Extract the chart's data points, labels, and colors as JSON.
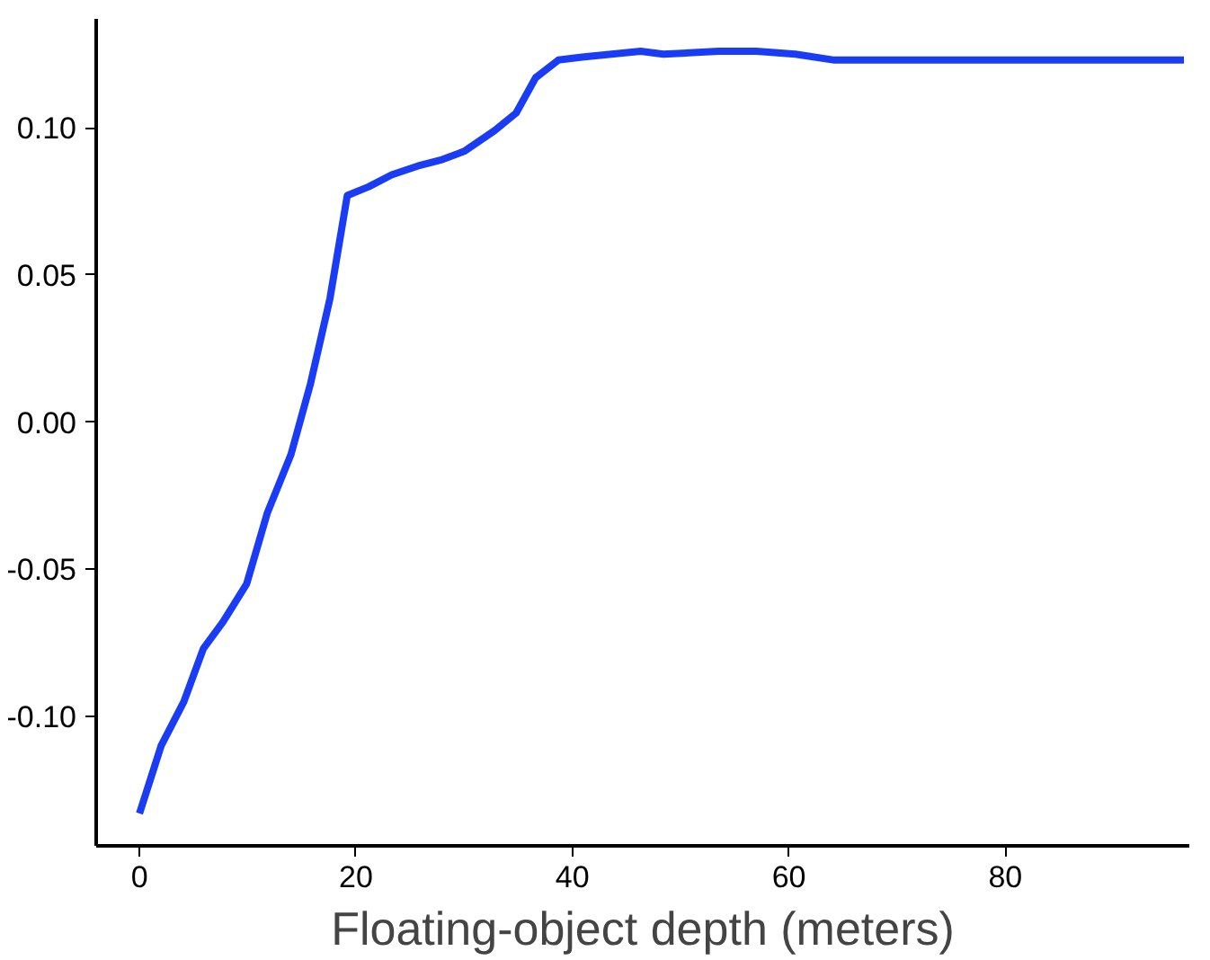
{
  "chart_data": {
    "type": "line",
    "xlabel": "Floating-object depth (meters)",
    "x": [
      0,
      2,
      4.1,
      5.9,
      7.7,
      9.9,
      11.8,
      14,
      15.8,
      17.6,
      19.2,
      21.2,
      23.3,
      25.7,
      27.8,
      30,
      32.8,
      34.8,
      36.6,
      38.7,
      40.9,
      46.3,
      48.4,
      53.5,
      57,
      60.6,
      64.2,
      96.5
    ],
    "series": [
      {
        "color": "#1a3cf5",
        "values": [
          -0.133,
          -0.11,
          -0.095,
          -0.077,
          -0.068,
          -0.055,
          -0.031,
          -0.011,
          0.013,
          0.042,
          0.077,
          0.08,
          0.084,
          0.087,
          0.089,
          0.092,
          0.099,
          0.105,
          0.117,
          0.123,
          0.124,
          0.126,
          0.125,
          0.126,
          0.126,
          0.125,
          0.123,
          0.123
        ]
      }
    ],
    "xlim": [
      -4,
      97
    ],
    "ylim": [
      -0.144,
      0.137
    ],
    "xticks": [
      0,
      20,
      40,
      60,
      80
    ],
    "yticks": [
      {
        "value": -0.1,
        "label": "-0.10"
      },
      {
        "value": -0.05,
        "label": "-0.05"
      },
      {
        "value": 0,
        "label": "0.00"
      },
      {
        "value": 0.05,
        "label": "0.05"
      },
      {
        "value": 0.1,
        "label": "0.10"
      }
    ],
    "grid": false,
    "marker": "none",
    "line_style": "solid"
  }
}
